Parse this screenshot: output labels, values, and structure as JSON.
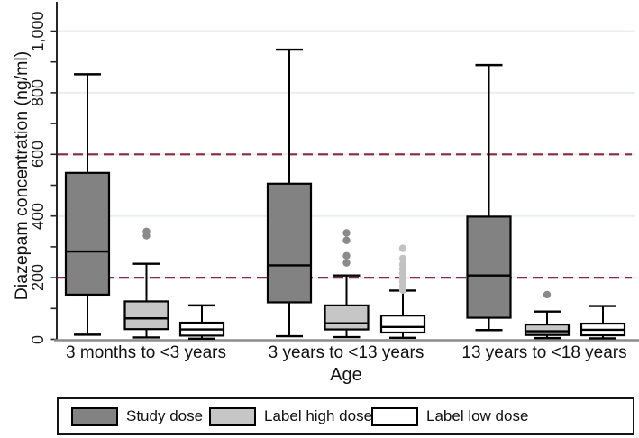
{
  "figure": {
    "y_axis": {
      "title": "Diazepam concentration (ng/ml)",
      "tick_labels": [
        "0",
        "200",
        "400",
        "600",
        "800",
        "1,000"
      ],
      "tick_values": [
        0,
        200,
        400,
        600,
        800,
        1000
      ],
      "minor_tick_step": 100
    },
    "x_axis": {
      "title": "Age"
    },
    "colors": {
      "grid_line": "#e9efee",
      "reference_line": "#892a44",
      "axis_line": "#262626",
      "baseline": "#8c8c8c",
      "box_stroke": "#000000"
    }
  },
  "chart_data": {
    "type": "box",
    "title": "",
    "xlabel": "Age",
    "ylabel": "Diazepam concentration (ng/ml)",
    "ylim": [
      0,
      1000
    ],
    "grid": "horizontal major gridlines, light",
    "legend_position": "bottom boxed",
    "categories": [
      "3 months to <3 years",
      "3 years to <13 years",
      "13 years to <18 years"
    ],
    "reference_lines": {
      "values": [
        600,
        200
      ],
      "color": "#892a44",
      "style": "dashed"
    },
    "series": [
      {
        "name": "Study dose",
        "fill": "#828282",
        "outlier_color": "#8a8a8a",
        "boxes": [
          {
            "whisker_low": 15,
            "q1": 145,
            "median": 285,
            "q3": 540,
            "whisker_high": 860,
            "outliers": []
          },
          {
            "whisker_low": 10,
            "q1": 120,
            "median": 240,
            "q3": 505,
            "whisker_high": 940,
            "outliers": []
          },
          {
            "whisker_low": 30,
            "q1": 70,
            "median": 207,
            "q3": 398,
            "whisker_high": 890,
            "outliers": []
          }
        ]
      },
      {
        "name": "Label high dose",
        "fill": "#c6c6c6",
        "outlier_color": "#8a8a8a",
        "boxes": [
          {
            "whisker_low": 6,
            "q1": 33,
            "median": 68,
            "q3": 123,
            "whisker_high": 245,
            "outliers": [
              350,
              336
            ]
          },
          {
            "whisker_low": 7,
            "q1": 32,
            "median": 52,
            "q3": 110,
            "whisker_high": 207,
            "outliers": [
              345,
              321,
              271,
              248
            ]
          },
          {
            "whisker_low": 4,
            "q1": 14,
            "median": 26,
            "q3": 48,
            "whisker_high": 90,
            "outliers": [
              145
            ]
          }
        ]
      },
      {
        "name": "Label low dose",
        "fill": "#ffffff",
        "outlier_color": "#c2c2c2",
        "boxes": [
          {
            "whisker_low": 2,
            "q1": 12,
            "median": 32,
            "q3": 54,
            "whisker_high": 110,
            "outliers": []
          },
          {
            "whisker_low": 5,
            "q1": 22,
            "median": 40,
            "q3": 77,
            "whisker_high": 158,
            "outliers": [
              295,
              262,
              243,
              228,
              213,
              199,
              186,
              172,
              160
            ]
          },
          {
            "whisker_low": 3,
            "q1": 13,
            "median": 31,
            "q3": 51,
            "whisker_high": 108,
            "outliers": []
          }
        ]
      }
    ]
  }
}
